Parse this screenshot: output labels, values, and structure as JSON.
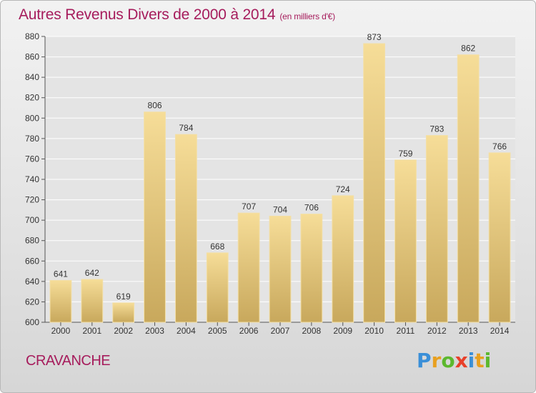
{
  "title": "Autres Revenus Divers de 2000 à 2014",
  "subtitle": "(en milliers d'€)",
  "commune": "CRAVANCHE",
  "logo": {
    "letters": [
      "P",
      "r",
      "o",
      "x",
      "i",
      "t",
      "i"
    ],
    "colors": [
      "#3a8fd8",
      "#e8a020",
      "#5cb82e",
      "#e8402a",
      "#3a8fd8",
      "#e8a020",
      "#5cb82e"
    ]
  },
  "colors": {
    "accent": "#a61c5c",
    "bar_light": "#f6dd98",
    "bar_dark": "#c8a85c",
    "grid": "#ffffff"
  },
  "chart_data": {
    "type": "bar",
    "categories": [
      "2000",
      "2001",
      "2002",
      "2003",
      "2004",
      "2005",
      "2006",
      "2007",
      "2008",
      "2009",
      "2010",
      "2011",
      "2012",
      "2013",
      "2014"
    ],
    "values": [
      641,
      642,
      619,
      806,
      784,
      668,
      707,
      704,
      706,
      724,
      873,
      759,
      783,
      862,
      766
    ],
    "ylim": [
      600,
      880
    ],
    "yticks": [
      600,
      620,
      640,
      660,
      680,
      700,
      720,
      740,
      760,
      780,
      800,
      820,
      840,
      860,
      880
    ],
    "grid": true,
    "data_labels": true
  }
}
